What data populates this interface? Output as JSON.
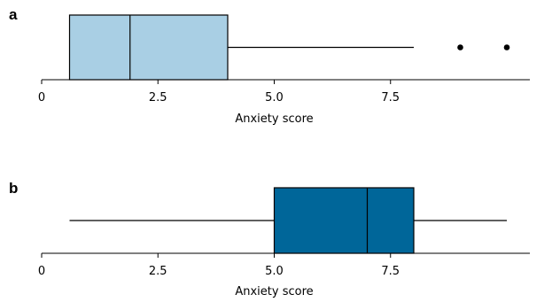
{
  "chart_data": [
    {
      "type": "box",
      "panel_label": "a",
      "xlabel": "Anxiety score",
      "xlim": [
        0,
        10.5
      ],
      "xticks": [
        0,
        2.5,
        5,
        7.5
      ],
      "xtick_labels": [
        "0",
        "2.5",
        "5.0",
        "7.5"
      ],
      "box": {
        "whisker_low": 0.6,
        "q1": 0.6,
        "median": 1.9,
        "q3": 4.0,
        "whisker_high": 8.0
      },
      "outliers": [
        9.0,
        10.0
      ],
      "fill_color": "#a9cfe4"
    },
    {
      "type": "box",
      "panel_label": "b",
      "xlabel": "Anxiety score",
      "xlim": [
        0,
        10.5
      ],
      "xticks": [
        0,
        2.5,
        5,
        7.5
      ],
      "xtick_labels": [
        "0",
        "2.5",
        "5.0",
        "7.5"
      ],
      "box": {
        "whisker_low": 0.6,
        "q1": 5.0,
        "median": 7.0,
        "q3": 8.0,
        "whisker_high": 10.0
      },
      "outliers": [],
      "fill_color": "#006699"
    }
  ]
}
